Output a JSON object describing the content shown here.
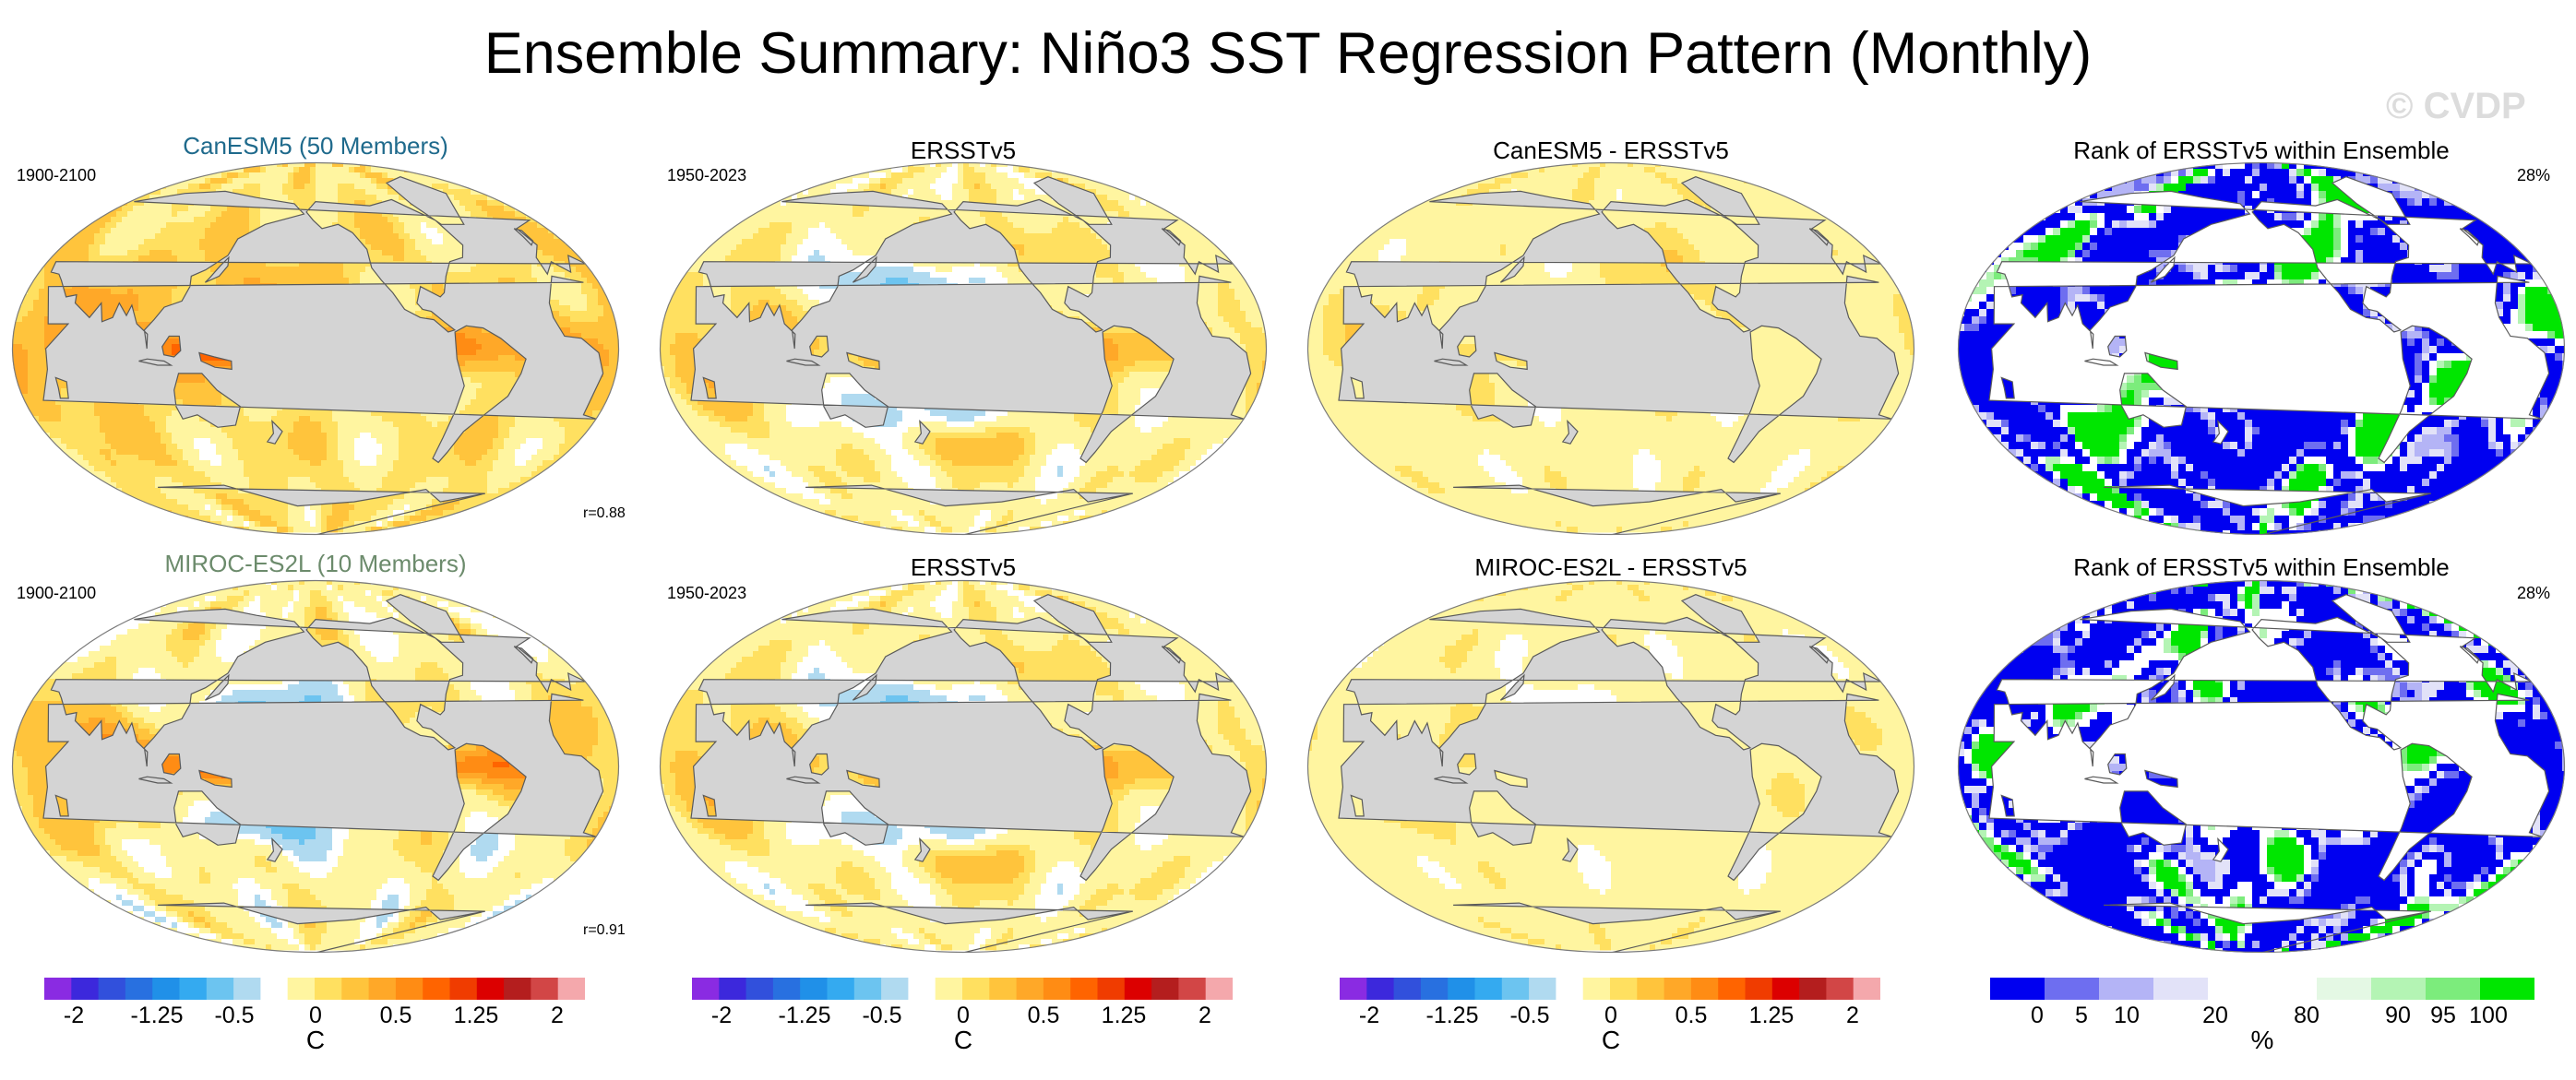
{
  "title": "Ensemble Summary: Niño3 SST Regression Pattern (Monthly)",
  "watermark": "© CVDP",
  "colors": {
    "canesm_title": "#1f6a8c",
    "miroc_title": "#6c8b6c",
    "land": "#d4d4d4",
    "sst_palette": [
      "#8a2be2",
      "#3c28dc",
      "#3150dc",
      "#2870e0",
      "#2090e8",
      "#34aaf0",
      "#6cc4f0",
      "#b0daf0",
      "#ffffff",
      "#fff5a0",
      "#ffe060",
      "#ffc43c",
      "#ffa828",
      "#ff8c14",
      "#ff6400",
      "#f03c00",
      "#dc0000",
      "#b41e1e",
      "#d24646",
      "#f4a8ac"
    ],
    "rank_palette": [
      "#0000f0",
      "#6e6ef0",
      "#b4b4f6",
      "#e2e2f8",
      "#ffffff",
      "#ffffff",
      "#e4f8e4",
      "#b4f4b4",
      "#7cec7c",
      "#00e600"
    ]
  },
  "panels": [
    {
      "id": "canesm5-model",
      "title": "CanESM5 (50 Members)",
      "title_color": "canesm_title",
      "years": "1900-2100",
      "corr": "r=0.88",
      "pattern": "model_cool_small",
      "intensity": 1.0
    },
    {
      "id": "ersstv5-obs-1",
      "title": "ERSSTv5",
      "years": "1950-2023",
      "pattern": "obs",
      "intensity": 1.0
    },
    {
      "id": "canesm5-diff",
      "title": "CanESM5 - ERSSTv5",
      "pattern": "diff",
      "intensity": 0.55
    },
    {
      "id": "canesm5-rank",
      "title": "Rank of ERSSTv5 within Ensemble",
      "percent": "28%",
      "pattern": "rank",
      "seed": 1
    },
    {
      "id": "miroc-model",
      "title": "MIROC-ES2L (10 Members)",
      "title_color": "miroc_title",
      "years": "1900-2100",
      "corr": "r=0.91",
      "pattern": "model_strong",
      "intensity": 1.25
    },
    {
      "id": "ersstv5-obs-2",
      "title": "ERSSTv5",
      "years": "1950-2023",
      "pattern": "obs",
      "intensity": 1.0
    },
    {
      "id": "miroc-diff",
      "title": "MIROC-ES2L - ERSSTv5",
      "pattern": "diff2",
      "intensity": 0.6
    },
    {
      "id": "miroc-rank",
      "title": "Rank of ERSSTv5 within Ensemble",
      "percent": "28%",
      "pattern": "rank",
      "seed": 2
    }
  ],
  "colorbars": [
    {
      "id": "sst-bar-1",
      "labels": [
        "-2",
        "-1.25",
        "-0.5",
        "0",
        "0.5",
        "1.25",
        "2"
      ],
      "unit": "C"
    },
    {
      "id": "sst-bar-2",
      "labels": [
        "-2",
        "-1.25",
        "-0.5",
        "0",
        "0.5",
        "1.25",
        "2"
      ],
      "unit": "C"
    },
    {
      "id": "sst-bar-3",
      "labels": [
        "-2",
        "-1.25",
        "-0.5",
        "0",
        "0.5",
        "1.25",
        "2"
      ],
      "unit": "C"
    },
    {
      "id": "rank-bar",
      "labels": [
        "0",
        "5",
        "10",
        "20",
        "80",
        "90",
        "95",
        "100"
      ],
      "unit": "%"
    }
  ]
}
